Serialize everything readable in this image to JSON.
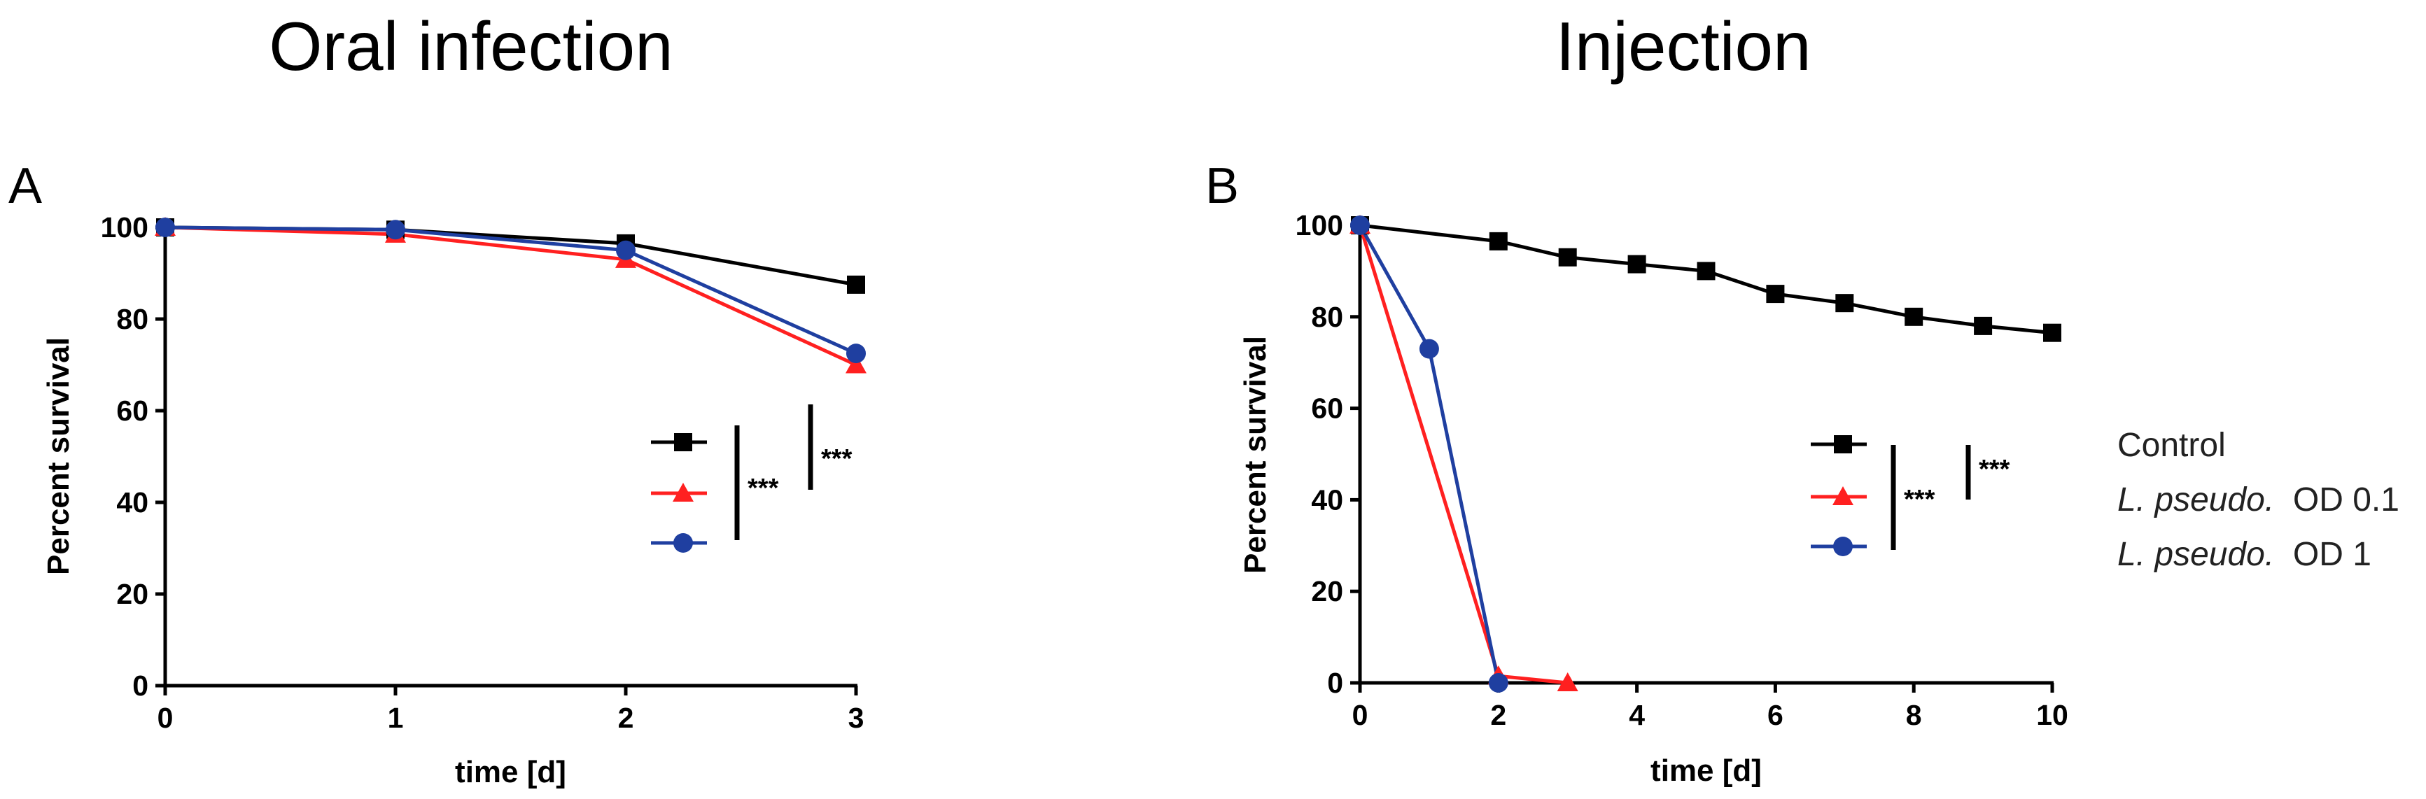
{
  "titles": {
    "left": "Oral infection",
    "right": "Injection"
  },
  "panels": {
    "a": "A",
    "b": "B"
  },
  "legend": {
    "items": [
      {
        "prefix": "",
        "suffix": "Control"
      },
      {
        "prefix": "L. pseudo.",
        "suffix": " OD 0.1"
      },
      {
        "prefix": "L. pseudo.",
        "suffix": " OD 1"
      }
    ]
  },
  "significance": {
    "label": "***"
  },
  "chart_data": [
    {
      "type": "line",
      "panel": "A",
      "title": "Oral infection",
      "xlabel": "time [d]",
      "ylabel": "Percent survival",
      "xlim": [
        0,
        3
      ],
      "ylim": [
        0,
        100
      ],
      "xticks": [
        0,
        1,
        2,
        3
      ],
      "yticks": [
        0,
        20,
        40,
        60,
        80,
        100
      ],
      "series": [
        {
          "name": "Control",
          "color": "#000000",
          "marker": "square",
          "x": [
            0,
            1,
            2,
            3
          ],
          "y": [
            100,
            99.5,
            96.5,
            87.5
          ]
        },
        {
          "name": "L. pseudo. OD 0.1",
          "color": "#ff2020",
          "marker": "triangle",
          "x": [
            0,
            1,
            2,
            3
          ],
          "y": [
            100,
            98.5,
            93,
            70
          ]
        },
        {
          "name": "L. pseudo. OD 1",
          "color": "#1f3fa0",
          "marker": "circle",
          "x": [
            0,
            1,
            2,
            3
          ],
          "y": [
            100,
            99.5,
            95,
            72.5
          ]
        }
      ],
      "annotations": [
        "***",
        "***"
      ]
    },
    {
      "type": "line",
      "panel": "B",
      "title": "Injection",
      "xlabel": "time [d]",
      "ylabel": "Percent survival",
      "xlim": [
        0,
        10
      ],
      "ylim": [
        0,
        100
      ],
      "xticks": [
        0,
        2,
        4,
        6,
        8,
        10
      ],
      "yticks": [
        0,
        20,
        40,
        60,
        80,
        100
      ],
      "series": [
        {
          "name": "Control",
          "color": "#000000",
          "marker": "square",
          "x": [
            0,
            2,
            3,
            4,
            5,
            6,
            7,
            8,
            9,
            10
          ],
          "y": [
            100,
            96.5,
            93,
            91.5,
            90,
            85,
            83,
            80,
            78,
            76.5
          ]
        },
        {
          "name": "L. pseudo. OD 0.1",
          "color": "#ff2020",
          "marker": "triangle",
          "x": [
            0,
            2,
            3
          ],
          "y": [
            100,
            1.5,
            0
          ]
        },
        {
          "name": "L. pseudo. OD 1",
          "color": "#1f3fa0",
          "marker": "circle",
          "x": [
            0,
            1,
            2
          ],
          "y": [
            100,
            73,
            0
          ]
        }
      ],
      "annotations": [
        "***",
        "***"
      ]
    }
  ]
}
